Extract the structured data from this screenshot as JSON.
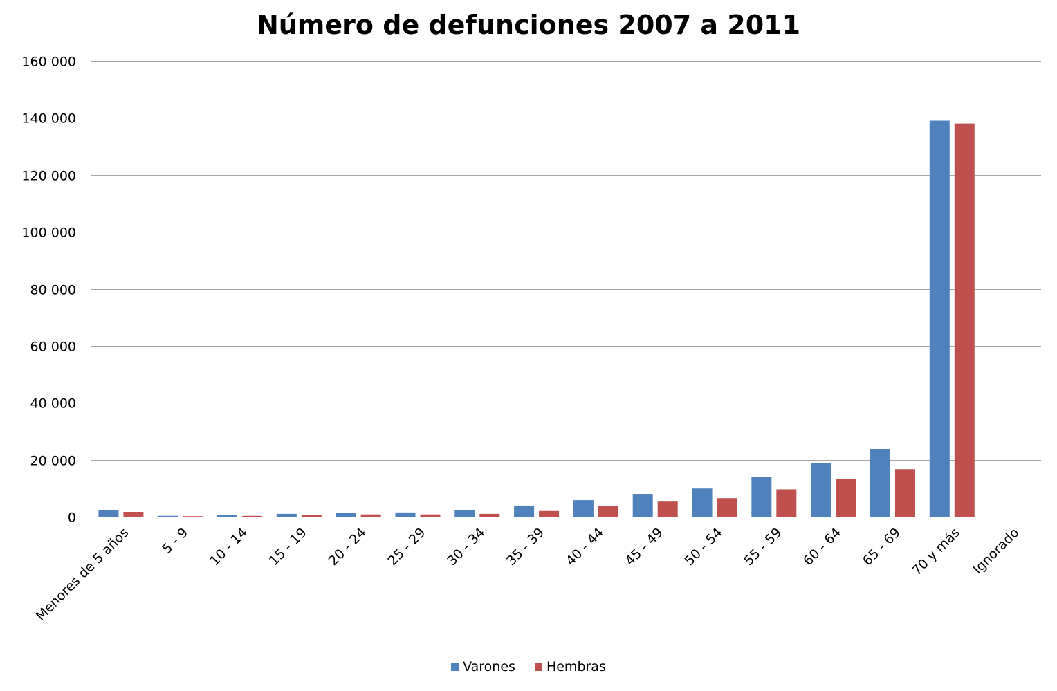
{
  "chart_data": {
    "type": "bar",
    "title": "Número de defunciones 2007 a 2011",
    "xlabel": "",
    "ylabel": "",
    "categories": [
      "Menores de 5 años",
      "5 - 9",
      "10 - 14",
      "15 - 19",
      "20 - 24",
      "25 - 29",
      "30 - 34",
      "35 - 39",
      "40 - 44",
      "45 - 49",
      "50 - 54",
      "55 - 59",
      "60 - 64",
      "65 - 69",
      "70 y más",
      "Ignorado"
    ],
    "series": [
      {
        "name": "Varones",
        "color": "#4F81BD",
        "values": [
          2200,
          300,
          500,
          1000,
          1400,
          1500,
          2200,
          3900,
          5800,
          8000,
          9900,
          13900,
          18800,
          23800,
          139000,
          0
        ]
      },
      {
        "name": "Hembras",
        "color": "#C0504D",
        "values": [
          1700,
          200,
          300,
          600,
          800,
          800,
          1000,
          2000,
          3700,
          5300,
          6500,
          9600,
          13300,
          16700,
          138000,
          0
        ]
      }
    ],
    "ylim": [
      0,
      160000
    ],
    "yticks": [
      0,
      20000,
      40000,
      60000,
      80000,
      100000,
      120000,
      140000,
      160000
    ],
    "ytick_labels": [
      "0",
      "20 000",
      "40 000",
      "60 000",
      "80 000",
      "100 000",
      "120 000",
      "140 000",
      "160 000"
    ],
    "grid": true,
    "grid_color": "#A6A6A6",
    "legend_position": "bottom"
  }
}
